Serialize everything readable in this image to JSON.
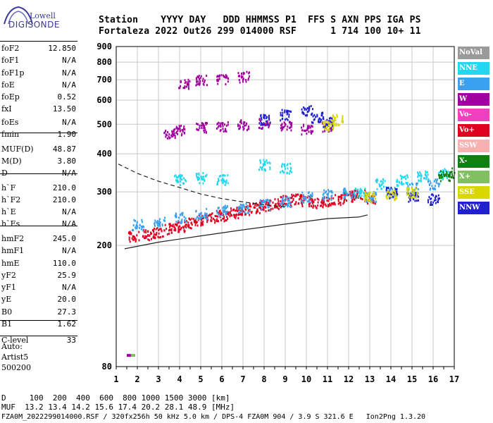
{
  "logo": {
    "line1": "Lowell",
    "line2": "DIGISONDE"
  },
  "header": {
    "row1": [
      "Station",
      "YYYY",
      "DAY",
      "DDD",
      "HHMMSS",
      "P1",
      "FFS",
      "S",
      "AXN",
      "PPS",
      "IGA",
      "PS"
    ],
    "row2": [
      "Fortaleza",
      "2022",
      "Out26",
      "299",
      "014000",
      "RSF",
      "1",
      "714",
      "100",
      "10+",
      "11"
    ]
  },
  "params": [
    {
      "name": "foF2",
      "value": "12.850"
    },
    {
      "name": "foF1",
      "value": "N/A"
    },
    {
      "name": "foF1p",
      "value": "N/A"
    },
    {
      "name": "foE",
      "value": "N/A"
    },
    {
      "name": "foEp",
      "value": "0.52"
    },
    {
      "name": "fxI",
      "value": "13.50"
    },
    {
      "name": "foEs",
      "value": "N/A"
    },
    {
      "name": "fmin",
      "value": "1.90"
    },
    {
      "name": "MUF(D)",
      "value": "48.87"
    },
    {
      "name": "M(D)",
      "value": "3.80"
    },
    {
      "name": "D",
      "value": "N/A"
    },
    {
      "name": "h`F",
      "value": "210.0"
    },
    {
      "name": "h`F2",
      "value": "210.0"
    },
    {
      "name": "h`E",
      "value": "N/A"
    },
    {
      "name": "h`Es",
      "value": "N/A"
    },
    {
      "name": "hmF2",
      "value": "245.0"
    },
    {
      "name": "hmF1",
      "value": "N/A"
    },
    {
      "name": "hmE",
      "value": "110.0"
    },
    {
      "name": "yF2",
      "value": "25.9"
    },
    {
      "name": "yF1",
      "value": "N/A"
    },
    {
      "name": "yE",
      "value": "20.0"
    },
    {
      "name": "B0",
      "value": "27.3"
    },
    {
      "name": "B1",
      "value": "1.62"
    },
    {
      "name": "C-level",
      "value": "33"
    }
  ],
  "auto": {
    "line1": "Auto:",
    "line2": "Artist5",
    "line3": "500200"
  },
  "legend": [
    {
      "label": "NoVal",
      "color": "#9a9a9a"
    },
    {
      "label": "NNE",
      "color": "#22d8f0"
    },
    {
      "label": "E",
      "color": "#3aa0f0"
    },
    {
      "label": "W",
      "color": "#a000a0"
    },
    {
      "label": "Vo-",
      "color": "#f040c0"
    },
    {
      "label": "Vo+",
      "color": "#e00020"
    },
    {
      "label": "SSW",
      "color": "#f8b0b0"
    },
    {
      "label": "X-",
      "color": "#108010"
    },
    {
      "label": "X+",
      "color": "#80c060"
    },
    {
      "label": "SSE",
      "color": "#d8d800"
    },
    {
      "label": "NNW",
      "color": "#2020d0"
    }
  ],
  "footer": {
    "line1": "D     100  200  400  600  800 1000 1500 3000 [km]",
    "line2": "MUF  13.2 13.4 14.2 15.6 17.4 20.2 28.1 48.9 [MHz]",
    "line3": "FZA0M_2022299014000.RSF / 320fx256h 50 kHz 5.0 km / DPS-4 FZA0M 904 / 3.9 S 321.6 E   Ion2Png 1.3.20"
  },
  "chart_data": {
    "type": "scatter",
    "xlim": [
      1,
      17
    ],
    "ylim": [
      80,
      900
    ],
    "xticks": [
      1,
      2,
      3,
      4,
      5,
      6,
      7,
      8,
      9,
      10,
      11,
      12,
      13,
      14,
      15,
      16,
      17
    ],
    "yticks": [
      80,
      200,
      300,
      400,
      500,
      600,
      700,
      800,
      900
    ],
    "y_scale": "log",
    "grid": true,
    "series": [
      {
        "name": "Vo+",
        "color": "#e00020",
        "points": [
          [
            1.8,
            215
          ],
          [
            2.5,
            218
          ],
          [
            3,
            222
          ],
          [
            3.5,
            228
          ],
          [
            4,
            232
          ],
          [
            4.5,
            238
          ],
          [
            5,
            244
          ],
          [
            5.5,
            248
          ],
          [
            6,
            252
          ],
          [
            6.5,
            258
          ],
          [
            7,
            262
          ],
          [
            7.5,
            268
          ],
          [
            8,
            272
          ],
          [
            8.5,
            276
          ],
          [
            9,
            282
          ],
          [
            9.5,
            286
          ],
          [
            10,
            282
          ],
          [
            10.5,
            278
          ],
          [
            11,
            282
          ],
          [
            11.5,
            285
          ],
          [
            12,
            292
          ],
          [
            12.5,
            296
          ],
          [
            13,
            288
          ]
        ]
      },
      {
        "name": "E",
        "color": "#3aa0f0",
        "points": [
          [
            2,
            235
          ],
          [
            3,
            240
          ],
          [
            4,
            248
          ],
          [
            5,
            256
          ],
          [
            6,
            262
          ],
          [
            7,
            268
          ],
          [
            8,
            274
          ],
          [
            9,
            280
          ],
          [
            10,
            290
          ],
          [
            11,
            296
          ],
          [
            12,
            300
          ],
          [
            13,
            292
          ],
          [
            14,
            300
          ],
          [
            15,
            310
          ],
          [
            16,
            320
          ]
        ]
      },
      {
        "name": "NNE",
        "color": "#22d8f0",
        "points": [
          [
            4,
            330
          ],
          [
            5,
            335
          ],
          [
            6,
            330
          ],
          [
            8,
            370
          ],
          [
            9,
            360
          ],
          [
            12.5,
            300
          ],
          [
            13.5,
            320
          ],
          [
            14.5,
            330
          ],
          [
            15.5,
            340
          ],
          [
            16.5,
            345
          ]
        ]
      },
      {
        "name": "W",
        "color": "#a000a0",
        "points": [
          [
            3.5,
            470
          ],
          [
            4,
            480
          ],
          [
            5,
            490
          ],
          [
            6,
            495
          ],
          [
            7,
            500
          ],
          [
            8,
            505
          ],
          [
            9,
            500
          ],
          [
            10,
            485
          ],
          [
            11,
            495
          ],
          [
            4.2,
            680
          ],
          [
            5,
            700
          ],
          [
            6,
            710
          ],
          [
            7,
            720
          ]
        ]
      },
      {
        "name": "NNW",
        "color": "#2020d0",
        "points": [
          [
            8,
            520
          ],
          [
            9,
            540
          ],
          [
            10,
            560
          ],
          [
            10.5,
            530
          ],
          [
            11,
            510
          ],
          [
            14,
            300
          ],
          [
            15,
            290
          ],
          [
            16,
            285
          ]
        ]
      },
      {
        "name": "SSE",
        "color": "#d8d800",
        "points": [
          [
            11,
            500
          ],
          [
            11.5,
            520
          ],
          [
            13,
            290
          ],
          [
            14,
            295
          ],
          [
            15,
            300
          ]
        ]
      },
      {
        "name": "X-",
        "color": "#108010",
        "points": [
          [
            16.5,
            340
          ],
          [
            17,
            350
          ]
        ]
      }
    ],
    "traces": [
      {
        "name": "dashed",
        "points": [
          [
            1.1,
            370
          ],
          [
            2,
            345
          ],
          [
            3,
            325
          ],
          [
            4,
            310
          ],
          [
            5,
            295
          ],
          [
            6,
            285
          ],
          [
            7,
            278
          ],
          [
            8,
            272
          ],
          [
            9,
            268
          ]
        ]
      },
      {
        "name": "lower",
        "points": [
          [
            1.4,
            195
          ],
          [
            3,
            205
          ],
          [
            5,
            215
          ],
          [
            7,
            225
          ],
          [
            9,
            235
          ],
          [
            11,
            245
          ],
          [
            12.5,
            248
          ],
          [
            12.9,
            252
          ]
        ]
      }
    ]
  }
}
